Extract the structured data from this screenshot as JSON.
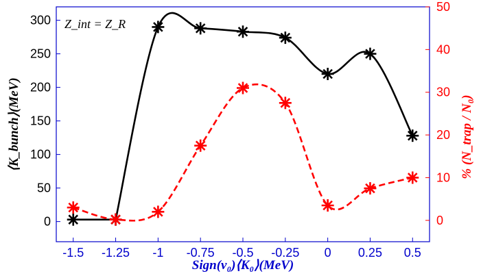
{
  "chart_data": {
    "type": "line",
    "annotation": "Z_int = Z_R",
    "xlabel": "Sign(v₀)⟨K₀⟩(MeV)",
    "ylabel_left": "⟨K_bunch⟩(MeV)",
    "ylabel_right": "% (N_trap / N₀)",
    "xlim": [
      -1.6,
      0.6
    ],
    "ylim_left": [
      -30,
      320
    ],
    "ylim_right": [
      -5,
      50
    ],
    "x_ticks": [
      "-1.5",
      "-1.25",
      "-1",
      "-0.75",
      "-0.5",
      "-0.25",
      "0",
      "0.25",
      "0.5"
    ],
    "y_left_ticks": [
      "0",
      "50",
      "100",
      "150",
      "200",
      "250",
      "300"
    ],
    "y_right_ticks": [
      "0",
      "10",
      "20",
      "30",
      "40",
      "50"
    ],
    "grid": false,
    "colors": {
      "left_series": "#000000",
      "right_series": "#ff0000",
      "x_axis": "#0000cc",
      "frame": "#0000cc"
    },
    "series": [
      {
        "axis": "left",
        "style": "solid",
        "marker": "asterisk",
        "x": [
          -1.5,
          -1.25,
          -1.0,
          -0.75,
          -0.5,
          -0.25,
          0.0,
          0.25,
          0.5
        ],
        "y": [
          3,
          3,
          290,
          288,
          283,
          274,
          220,
          250,
          128
        ]
      },
      {
        "axis": "right",
        "style": "dashed",
        "marker": "asterisk",
        "x": [
          -1.5,
          -1.25,
          -1.0,
          -0.75,
          -0.5,
          -0.25,
          0.0,
          0.25,
          0.5
        ],
        "y": [
          3,
          0.2,
          2,
          17.5,
          31,
          27.5,
          3.5,
          7.5,
          10
        ]
      }
    ]
  }
}
